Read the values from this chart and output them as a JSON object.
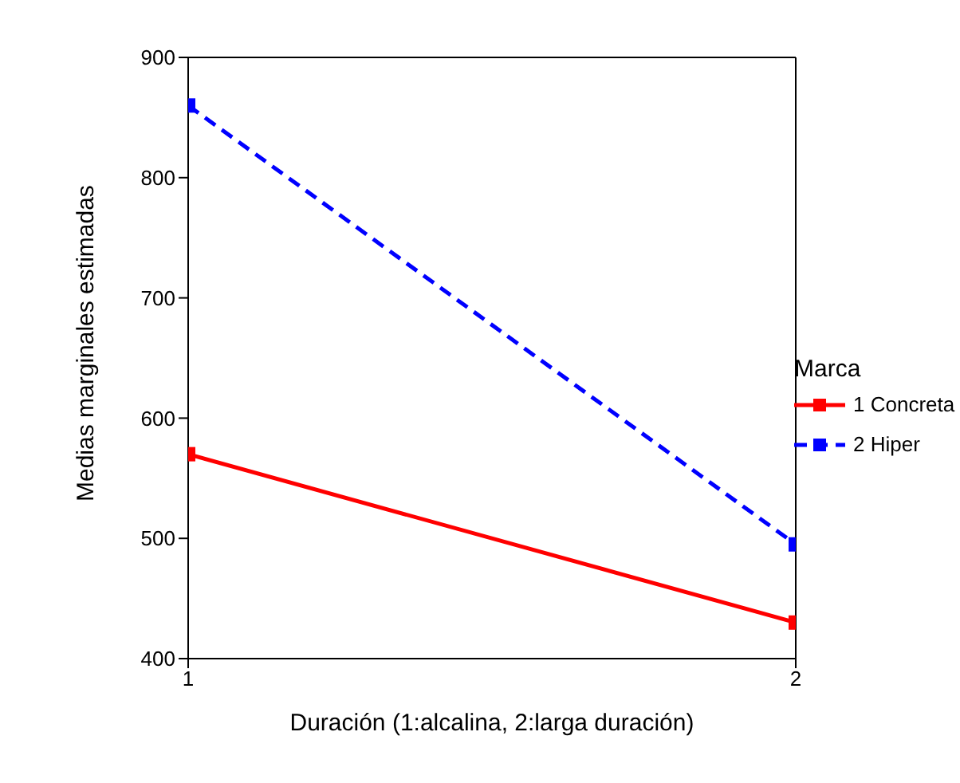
{
  "chart_data": {
    "type": "line",
    "xlabel": "Duración (1:alcalina, 2:larga duración)",
    "ylabel": "Medias marginales estimadas",
    "legend_title": "Marca",
    "x": [
      1,
      2
    ],
    "series": [
      {
        "name": "1 Concreta",
        "color": "#ff0000",
        "values": [
          570,
          430
        ],
        "line_style": "solid"
      },
      {
        "name": "2 Hiper",
        "color": "#0000ff",
        "values": [
          860,
          495
        ],
        "line_style": "dashed"
      }
    ],
    "xlim": [
      1,
      2
    ],
    "xticks": [
      1,
      2
    ],
    "ylim": [
      400,
      900
    ],
    "yticks": [
      400,
      500,
      600,
      700,
      800,
      900
    ],
    "grid": false,
    "legend": "right",
    "marker": "square"
  }
}
